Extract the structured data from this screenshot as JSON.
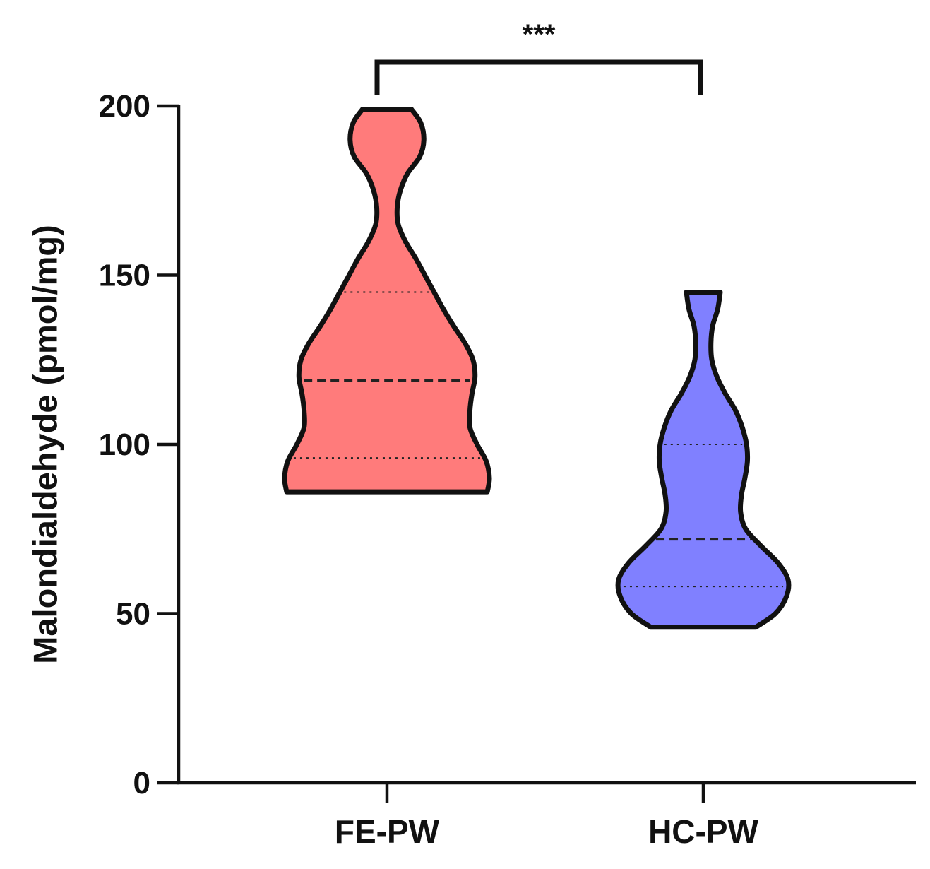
{
  "chart_data": {
    "type": "violin",
    "ylabel": "Malondialdehyde (pmol/mg)",
    "ylim": [
      0,
      200
    ],
    "yticks": [
      "0",
      "50",
      "100",
      "150",
      "200"
    ],
    "categories": [
      "FE-PW",
      "HC-PW"
    ],
    "series": [
      {
        "category": "FE-PW",
        "color": "#ff7b7b",
        "min": 86,
        "max": 199,
        "q1": 96,
        "median": 119,
        "q3": 145,
        "density": [
          [
            86,
            0.98
          ],
          [
            90,
            1.0
          ],
          [
            95,
            0.97
          ],
          [
            100,
            0.88
          ],
          [
            105,
            0.81
          ],
          [
            110,
            0.81
          ],
          [
            115,
            0.83
          ],
          [
            120,
            0.86
          ],
          [
            125,
            0.84
          ],
          [
            130,
            0.76
          ],
          [
            135,
            0.65
          ],
          [
            140,
            0.55
          ],
          [
            145,
            0.46
          ],
          [
            150,
            0.37
          ],
          [
            155,
            0.28
          ],
          [
            160,
            0.18
          ],
          [
            165,
            0.11
          ],
          [
            170,
            0.1
          ],
          [
            175,
            0.13
          ],
          [
            180,
            0.2
          ],
          [
            185,
            0.32
          ],
          [
            190,
            0.36
          ],
          [
            195,
            0.33
          ],
          [
            199,
            0.24
          ]
        ]
      },
      {
        "category": "HC-PW",
        "color": "#8080ff",
        "min": 46,
        "max": 145,
        "q1": 58,
        "median": 72,
        "q3": 100,
        "density": [
          [
            46,
            0.62
          ],
          [
            50,
            0.85
          ],
          [
            55,
            0.98
          ],
          [
            60,
            1.0
          ],
          [
            65,
            0.88
          ],
          [
            70,
            0.68
          ],
          [
            75,
            0.5
          ],
          [
            80,
            0.44
          ],
          [
            85,
            0.45
          ],
          [
            90,
            0.49
          ],
          [
            95,
            0.52
          ],
          [
            100,
            0.51
          ],
          [
            105,
            0.46
          ],
          [
            110,
            0.38
          ],
          [
            115,
            0.26
          ],
          [
            120,
            0.16
          ],
          [
            125,
            0.1
          ],
          [
            130,
            0.09
          ],
          [
            135,
            0.11
          ],
          [
            140,
            0.17
          ],
          [
            145,
            0.2
          ]
        ]
      }
    ],
    "significance": {
      "from": "FE-PW",
      "to": "HC-PW",
      "label": "***"
    }
  }
}
